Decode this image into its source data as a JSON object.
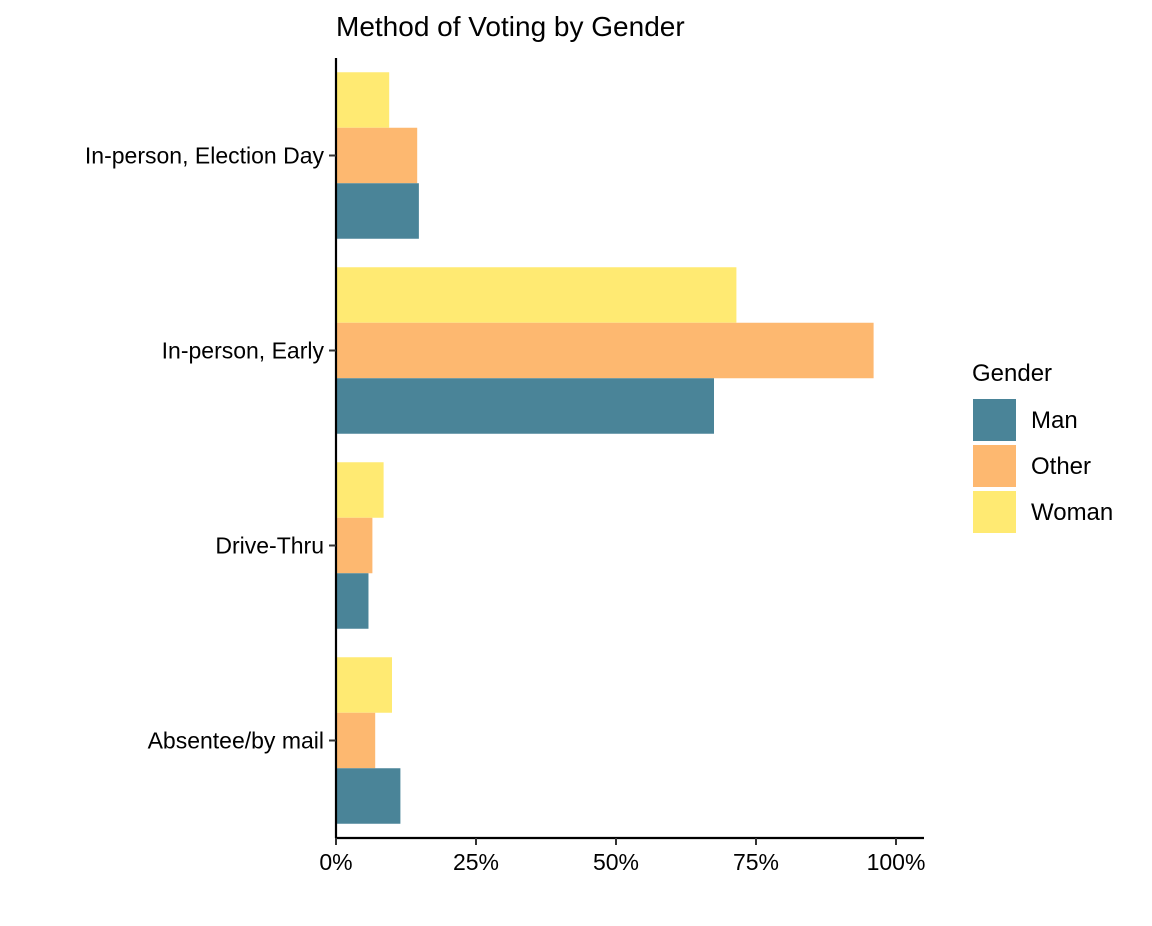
{
  "chart_data": {
    "type": "bar",
    "orientation": "horizontal",
    "title": "Method of Voting by Gender",
    "xlabel": "",
    "ylabel": "",
    "xlim": [
      0,
      1.05
    ],
    "x_ticks": [
      0,
      0.25,
      0.5,
      0.75,
      1.0
    ],
    "x_tick_labels": [
      "0%",
      "25%",
      "50%",
      "75%",
      "100%"
    ],
    "categories": [
      "In-person, Election Day",
      "In-person, Early",
      "Drive-Thru",
      "Absentee/by mail"
    ],
    "series": [
      {
        "name": "Woman",
        "color": "#FFEA72",
        "values": [
          0.095,
          0.715,
          0.085,
          0.1
        ]
      },
      {
        "name": "Other",
        "color": "#FDB870",
        "values": [
          0.145,
          0.96,
          0.065,
          0.07
        ]
      },
      {
        "name": "Man",
        "color": "#4A8498",
        "values": [
          0.148,
          0.675,
          0.058,
          0.115
        ]
      }
    ],
    "legend": {
      "title": "Gender",
      "entries": [
        "Man",
        "Other",
        "Woman"
      ],
      "placement": "right"
    },
    "grid": false
  }
}
